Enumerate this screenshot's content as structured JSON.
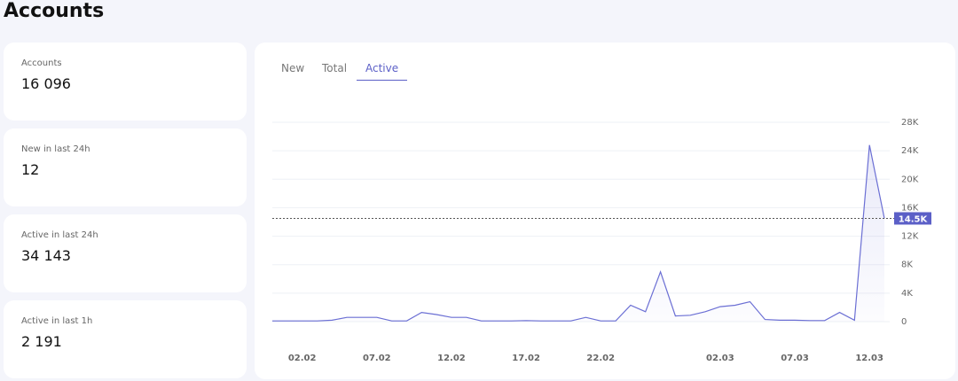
{
  "header": {
    "title": "Accounts"
  },
  "stats": [
    {
      "label": "Accounts",
      "value": "16 096"
    },
    {
      "label": "New in last 24h",
      "value": "12"
    },
    {
      "label": "Active in last 24h",
      "value": "34 143"
    },
    {
      "label": "Active in last 1h",
      "value": "2 191"
    }
  ],
  "tabs": [
    "New",
    "Total",
    "Active"
  ],
  "chart_data": {
    "type": "line",
    "categories": [
      null,
      null,
      "02.02",
      null,
      null,
      null,
      null,
      "07.02",
      null,
      null,
      null,
      null,
      "12.02",
      null,
      null,
      null,
      null,
      "17.02",
      null,
      null,
      null,
      null,
      "22.02",
      null,
      null,
      null,
      null,
      null,
      null,
      null,
      "02.03",
      null,
      null,
      null,
      null,
      "07.03",
      null,
      null,
      null,
      null,
      "12.03",
      null
    ],
    "values": [
      100,
      100,
      100,
      100,
      200,
      600,
      600,
      600,
      100,
      100,
      1300,
      1000,
      600,
      600,
      100,
      100,
      100,
      150,
      100,
      100,
      100,
      600,
      100,
      100,
      2300,
      1400,
      7000,
      800,
      900,
      1400,
      2100,
      2300,
      2800,
      300,
      200,
      200,
      150,
      150,
      1300,
      200,
      24800,
      14500
    ],
    "color": "#6b6fd4",
    "ylim": [
      0,
      28000
    ],
    "yticks": [
      0,
      {
        "value": 4000,
        "label": "4K"
      },
      {
        "value": 8000,
        "label": "8K"
      },
      {
        "value": 12000,
        "label": "12K"
      },
      {
        "value": 16000,
        "label": "16K"
      },
      {
        "value": 20000,
        "label": "20K"
      },
      {
        "value": 24000,
        "label": "24K"
      },
      {
        "value": 28000,
        "label": "28K"
      }
    ],
    "grid": true,
    "marker": {
      "value": 14500,
      "label": "14.5K"
    }
  }
}
